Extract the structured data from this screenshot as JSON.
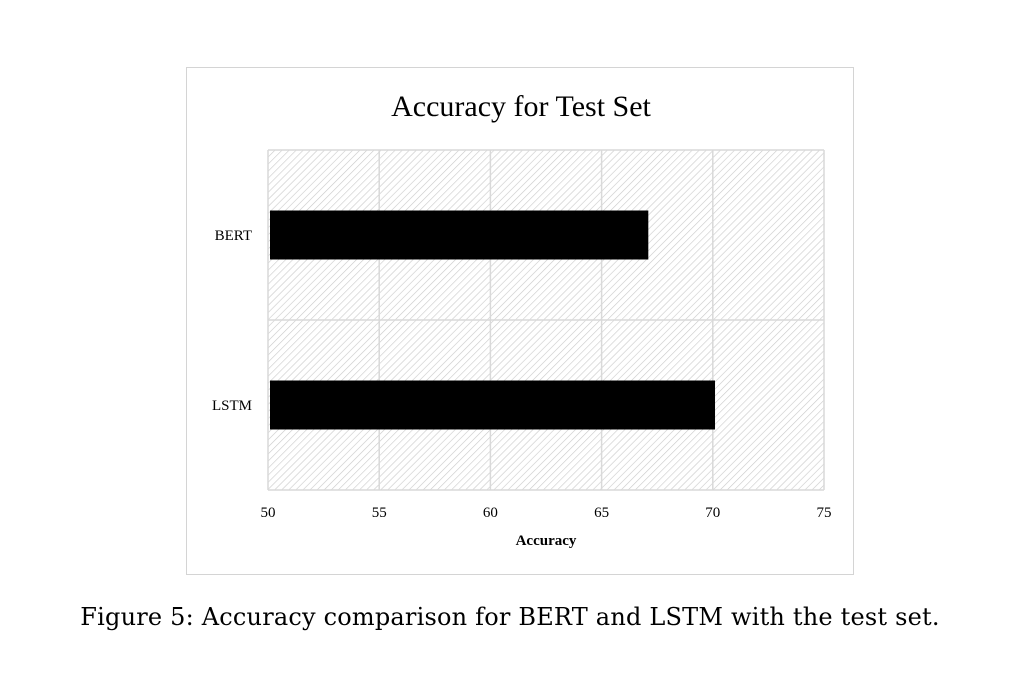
{
  "chart_data": {
    "type": "bar",
    "orientation": "horizontal",
    "title": "Accuracy for Test Set",
    "categories": [
      "BERT",
      "LSTM"
    ],
    "values": [
      67.1,
      70.1
    ],
    "xlabel": "Accuracy",
    "ylabel": "",
    "xlim": [
      50,
      75
    ],
    "xticks": [
      "50",
      "55",
      "60",
      "65",
      "70",
      "75"
    ],
    "grid": true,
    "bar_color": "#000000",
    "plot_background": "hatched",
    "legend": "none"
  },
  "caption": "Figure 5: Accuracy comparison for BERT and LSTM with the test set."
}
